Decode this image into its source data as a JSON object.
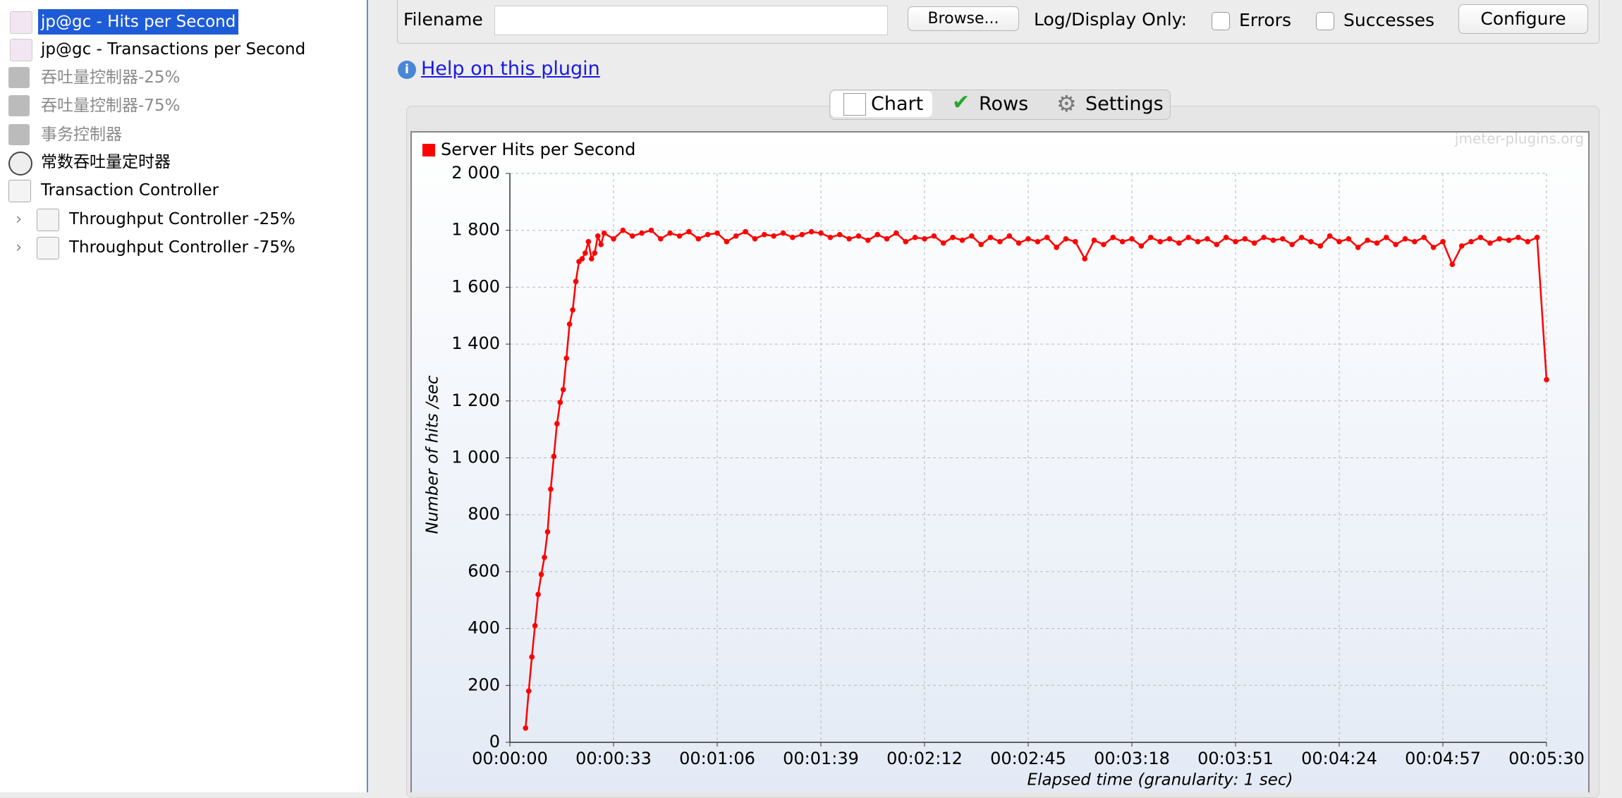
{
  "tree": [
    "jp@gc - Hits per Second",
    "jp@gc - Transactions per Second",
    "吞吐量控制器-25%",
    "吞吐量控制器-75%",
    "事务控制器",
    "常数吞吐量定时器",
    "Transaction Controller",
    "Throughput Controller -25%",
    "Throughput Controller -75%"
  ],
  "toolbar": {
    "filename": "Filename",
    "browse": "Browse...",
    "log_display": "Log/Display Only:",
    "errors": "Errors",
    "successes": "Successes",
    "configure": "Configure",
    "help": "Help on this plugin"
  },
  "tabs": [
    "Chart",
    "Rows",
    "Settings"
  ],
  "watermark": "jmeter-plugins.org",
  "chart_data": {
    "type": "line",
    "y_label": "Number of hits /sec",
    "x_label": "Elapsed time (granularity: 1 sec)",
    "legend": "top-left",
    "grid": true,
    "x": [
      5,
      6,
      7,
      8,
      9,
      10,
      11,
      12,
      13,
      14,
      15,
      16,
      17,
      18,
      19,
      20,
      21,
      22,
      23,
      24,
      25,
      26,
      27,
      28,
      29,
      30,
      33,
      36,
      39,
      42,
      45,
      48,
      51,
      54,
      57,
      60,
      63,
      66,
      69,
      72,
      75,
      78,
      81,
      84,
      87,
      90,
      93,
      96,
      99,
      102,
      105,
      108,
      111,
      114,
      117,
      120,
      123,
      126,
      129,
      132,
      135,
      138,
      141,
      144,
      147,
      150,
      153,
      156,
      159,
      162,
      165,
      168,
      171,
      174,
      177,
      180,
      183,
      186,
      189,
      192,
      195,
      198,
      201,
      204,
      207,
      210,
      213,
      216,
      219,
      222,
      225,
      228,
      231,
      234,
      237,
      240,
      243,
      246,
      249,
      252,
      255,
      258,
      261,
      264,
      267,
      270,
      273,
      276,
      279,
      282,
      285,
      288,
      291,
      294,
      297,
      300,
      303,
      306,
      309,
      312,
      315,
      318,
      321,
      324,
      327,
      330
    ],
    "series": [
      {
        "name": "Server Hits per Second",
        "color": "#ff0000",
        "values": [
          50,
          180,
          300,
          410,
          520,
          590,
          650,
          740,
          890,
          1005,
          1120,
          1195,
          1240,
          1350,
          1470,
          1520,
          1620,
          1690,
          1700,
          1720,
          1760,
          1700,
          1720,
          1780,
          1750,
          1790,
          1770,
          1800,
          1780,
          1790,
          1800,
          1770,
          1790,
          1780,
          1795,
          1770,
          1785,
          1790,
          1760,
          1780,
          1795,
          1770,
          1785,
          1780,
          1790,
          1775,
          1785,
          1795,
          1790,
          1775,
          1785,
          1770,
          1780,
          1765,
          1785,
          1770,
          1790,
          1760,
          1775,
          1770,
          1780,
          1755,
          1775,
          1765,
          1780,
          1750,
          1775,
          1760,
          1780,
          1755,
          1770,
          1760,
          1775,
          1740,
          1770,
          1760,
          1700,
          1765,
          1750,
          1775,
          1760,
          1770,
          1745,
          1775,
          1760,
          1770,
          1755,
          1775,
          1760,
          1770,
          1750,
          1775,
          1760,
          1770,
          1755,
          1775,
          1765,
          1770,
          1750,
          1775,
          1760,
          1745,
          1780,
          1760,
          1770,
          1740,
          1765,
          1755,
          1775,
          1750,
          1770,
          1760,
          1775,
          1740,
          1760,
          1680,
          1745,
          1760,
          1775,
          1755,
          1770,
          1765,
          1775,
          1760,
          1775,
          1275
        ]
      }
    ],
    "xlim": [
      0,
      330
    ],
    "xticks": [
      {
        "value": 0,
        "label": "00:00:00"
      },
      {
        "value": 33,
        "label": "00:00:33"
      },
      {
        "value": 66,
        "label": "00:01:06"
      },
      {
        "value": 99,
        "label": "00:01:39"
      },
      {
        "value": 132,
        "label": "00:02:12"
      },
      {
        "value": 165,
        "label": "00:02:45"
      },
      {
        "value": 198,
        "label": "00:03:18"
      },
      {
        "value": 231,
        "label": "00:03:51"
      },
      {
        "value": 264,
        "label": "00:04:24"
      },
      {
        "value": 297,
        "label": "00:04:57"
      },
      {
        "value": 330,
        "label": "00:05:30"
      }
    ],
    "ylim": [
      0,
      2000
    ],
    "yticks": [
      0,
      200,
      400,
      600,
      800,
      {
        "value": 1000,
        "label": "1 000"
      },
      {
        "value": 1200,
        "label": "1 200"
      },
      {
        "value": 1400,
        "label": "1 400"
      },
      {
        "value": 1600,
        "label": "1 600"
      },
      {
        "value": 1800,
        "label": "1 800"
      },
      {
        "value": 2000,
        "label": "2 000"
      }
    ]
  }
}
